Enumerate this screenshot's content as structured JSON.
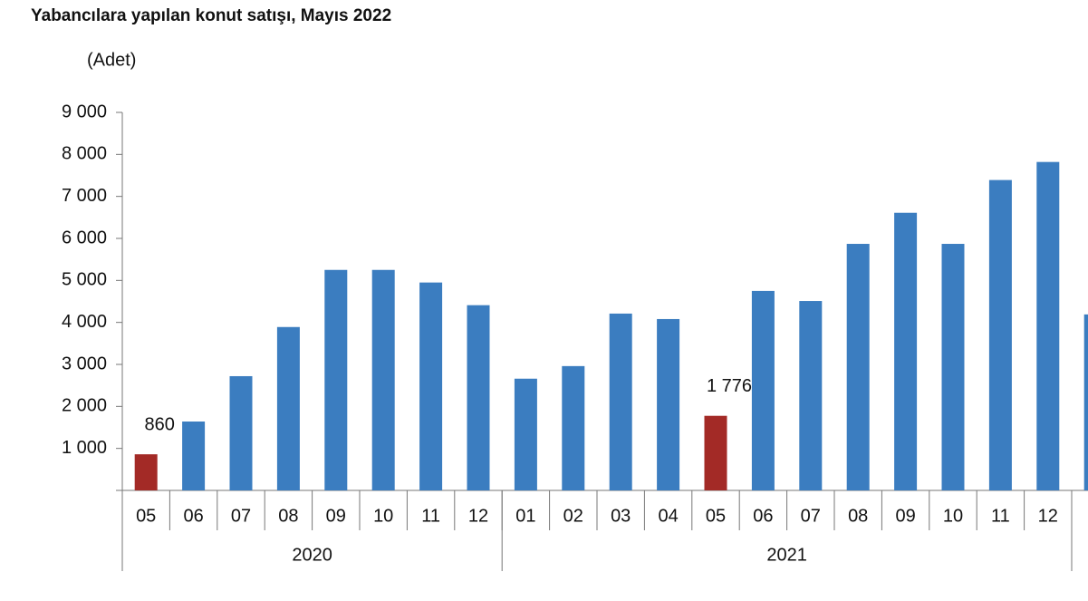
{
  "chart_data": {
    "type": "bar",
    "title": "Yabancılara yapılan konut satışı, Mayıs 2022",
    "y_label": "(Adet)",
    "categories": [
      "05",
      "06",
      "07",
      "08",
      "09",
      "10",
      "11",
      "12",
      "01",
      "02",
      "03",
      "04",
      "05",
      "06",
      "07",
      "08",
      "09",
      "10",
      "11",
      "12",
      null
    ],
    "x_groups": [
      {
        "label": "2020",
        "count": 8
      },
      {
        "label": "2021",
        "count": 12
      }
    ],
    "values": [
      860,
      1640,
      2720,
      3890,
      5250,
      5250,
      4950,
      4410,
      2660,
      2960,
      4210,
      4080,
      1776,
      4750,
      4510,
      5870,
      6610,
      5870,
      7390,
      7820,
      4190
    ],
    "value_labels": [
      "860",
      null,
      null,
      null,
      null,
      null,
      null,
      null,
      null,
      null,
      null,
      null,
      "1 776",
      null,
      null,
      null,
      null,
      null,
      null,
      null,
      null
    ],
    "colors": [
      "#a32a26",
      "#3b7dc0",
      "#3b7dc0",
      "#3b7dc0",
      "#3b7dc0",
      "#3b7dc0",
      "#3b7dc0",
      "#3b7dc0",
      "#3b7dc0",
      "#3b7dc0",
      "#3b7dc0",
      "#3b7dc0",
      "#a32a26",
      "#3b7dc0",
      "#3b7dc0",
      "#3b7dc0",
      "#3b7dc0",
      "#3b7dc0",
      "#3b7dc0",
      "#3b7dc0",
      "#3b7dc0"
    ],
    "ylim": [
      0,
      9000
    ],
    "yticks": [
      {
        "value": 1000,
        "label": "1 000"
      },
      {
        "value": 2000,
        "label": "2 000"
      },
      {
        "value": 3000,
        "label": "3 000"
      },
      {
        "value": 4000,
        "label": "4 000"
      },
      {
        "value": 5000,
        "label": "5 000"
      },
      {
        "value": 6000,
        "label": "6 000"
      },
      {
        "value": 7000,
        "label": "7 000"
      },
      {
        "value": 8000,
        "label": "8 000"
      },
      {
        "value": 9000,
        "label": "9 000"
      }
    ],
    "grid": false
  }
}
